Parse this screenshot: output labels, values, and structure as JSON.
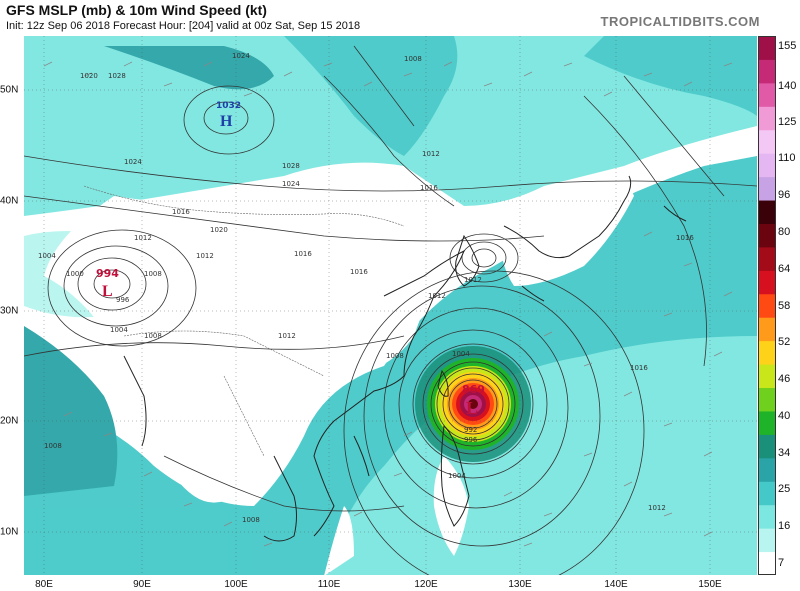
{
  "header": {
    "title": "GFS MSLP (mb) & 10m Wind Speed (kt)",
    "subtitle": "Init: 12z Sep 06 2018   Forecast Hour: [204]   valid at 00z Sat, Sep 15 2018",
    "credit": "TROPICALTIDBITS.COM"
  },
  "axes": {
    "lat_labels": [
      "50N",
      "40N",
      "30N",
      "20N",
      "10N"
    ],
    "lon_labels": [
      "80E",
      "90E",
      "100E",
      "110E",
      "120E",
      "130E",
      "140E",
      "150E"
    ]
  },
  "colorbar": {
    "ticks": [
      "155",
      "140",
      "125",
      "110",
      "96",
      "80",
      "64",
      "58",
      "52",
      "46",
      "40",
      "34",
      "25",
      "16",
      "7"
    ],
    "colors": [
      "#ffffff",
      "#b8f5f0",
      "#7ce6e0",
      "#45c9c8",
      "#2aa4a6",
      "#1a8f7a",
      "#1fb32a",
      "#6fd11d",
      "#c8e61a",
      "#ffd21a",
      "#ff9a1a",
      "#ff4a14",
      "#d6101e",
      "#a30b18",
      "#6a0510",
      "#3a0208",
      "#c7a3e6",
      "#e4b6f2",
      "#f4c8f4",
      "#f09ad6",
      "#e05aa8",
      "#c42a76",
      "#a01048"
    ]
  },
  "map": {
    "lows": [
      {
        "value": "869",
        "symbol": "L"
      },
      {
        "value": "994",
        "symbol": "L"
      }
    ],
    "highs": [
      {
        "value": "1032",
        "symbol": "H"
      }
    ],
    "isobar_labels": [
      "1020",
      "1028",
      "1024",
      "1024",
      "1008",
      "1012",
      "1016",
      "1016",
      "1016",
      "1020",
      "1024",
      "1028",
      "1012",
      "1000",
      "1004",
      "1008",
      "996",
      "1012",
      "1004",
      "1008",
      "1012",
      "1012",
      "1016",
      "1008",
      "1004",
      "1012",
      "1016",
      "1016",
      "1012",
      "1004",
      "1008",
      "1008",
      "992",
      "996"
    ]
  }
}
